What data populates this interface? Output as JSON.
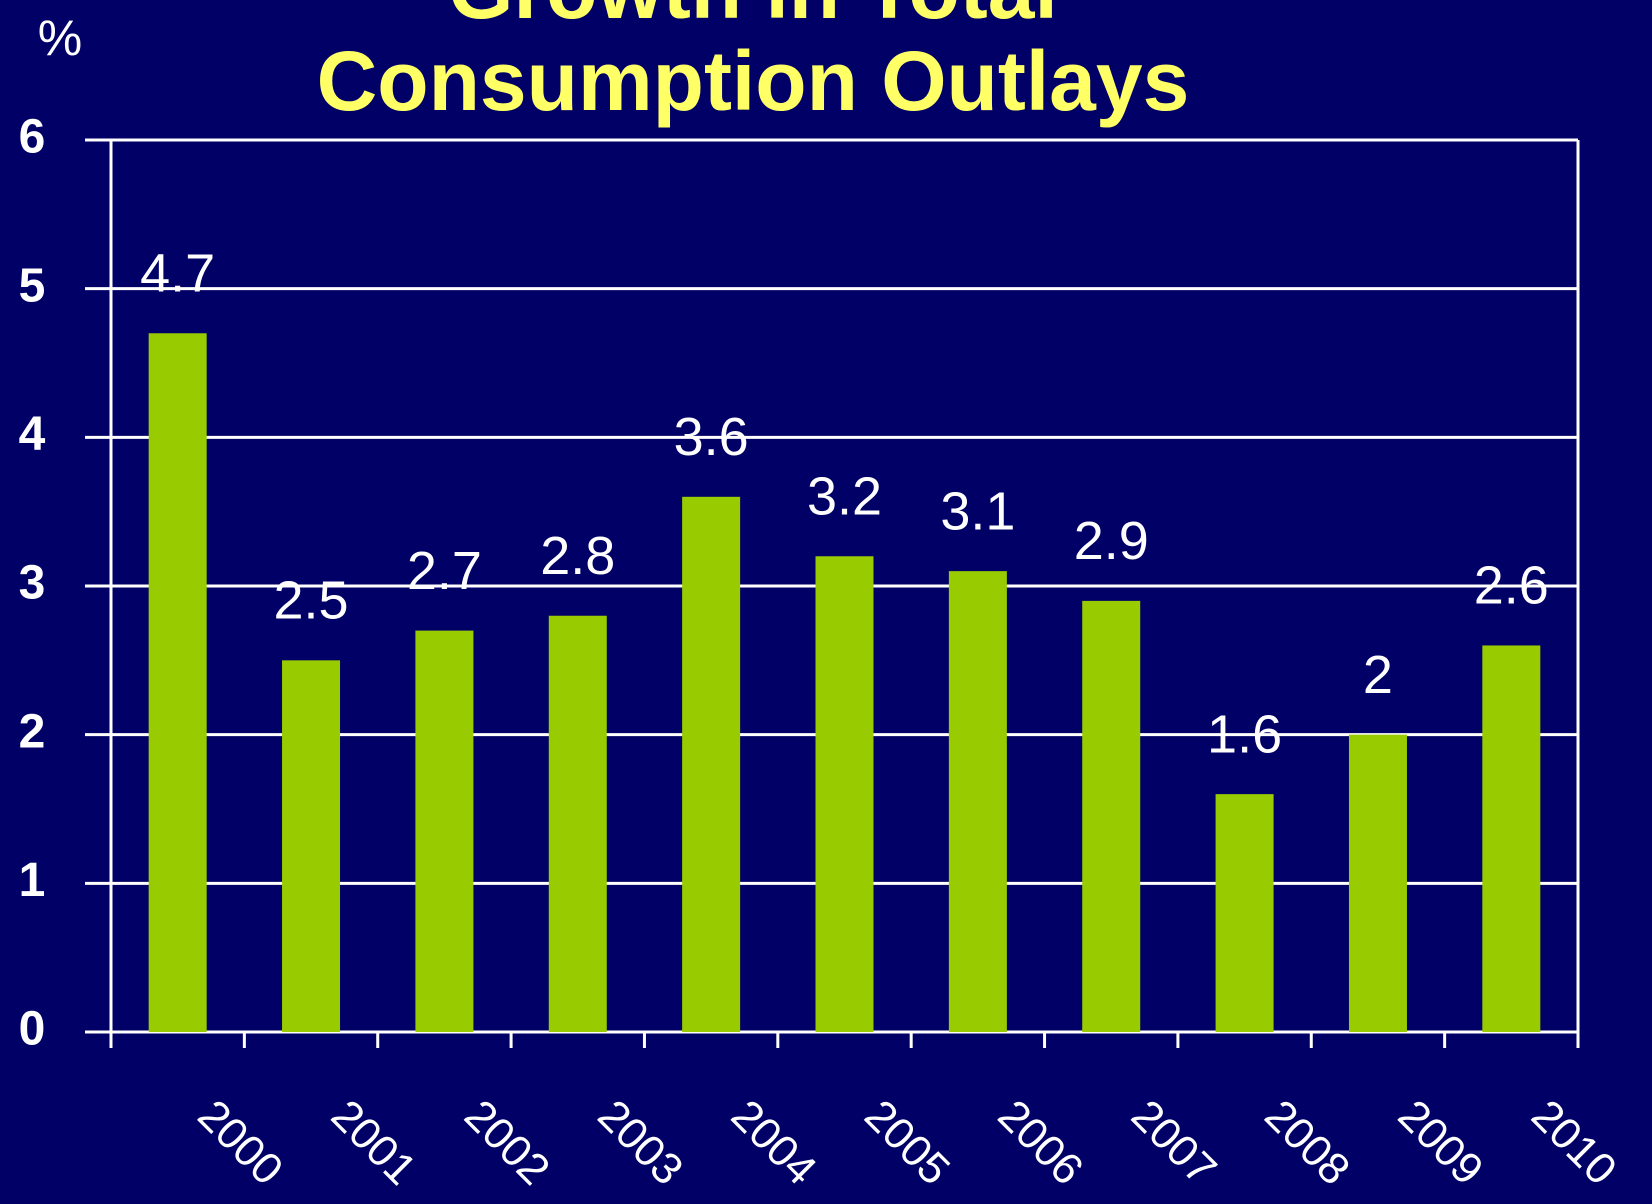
{
  "chart_data": {
    "type": "bar",
    "title": [
      "Growth in Total",
      "Consumption Outlays"
    ],
    "y_label": "%",
    "categories": [
      "2000",
      "2001",
      "2002",
      "2003",
      "2004",
      "2005",
      "2006",
      "2007",
      "2008",
      "2009",
      "2010"
    ],
    "values": [
      4.7,
      2.5,
      2.7,
      2.8,
      3.6,
      3.2,
      3.1,
      2.9,
      1.6,
      2,
      2.6
    ],
    "color": "#99cc00",
    "ylim": [
      0,
      6
    ],
    "yticks": [
      0,
      1,
      2,
      3,
      4,
      5,
      6
    ],
    "grid": true
  }
}
